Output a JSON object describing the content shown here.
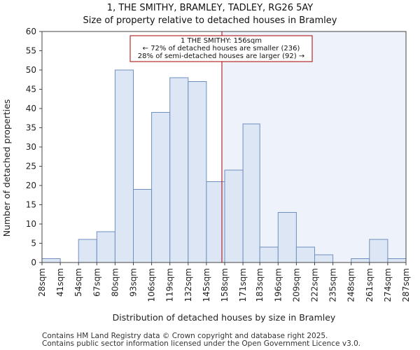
{
  "title_line1": "1, THE SMITHY, BRAMLEY, TADLEY, RG26 5AY",
  "title_line2": "Size of property relative to detached houses in Bramley",
  "footer_line1": "Contains HM Land Registry data © Crown copyright and database right 2025.",
  "footer_line2": "Contains public sector information licensed under the Open Government Licence v3.0.",
  "colors": {
    "bar_fill": "#dce6f5",
    "bar_stroke": "#6f8fbf",
    "highlight_region": "#eef2fb",
    "marker_line": "#aa0000",
    "annotation_border": "#aa0000"
  },
  "chart_data": {
    "type": "bar",
    "title": "Size of property relative to detached houses in Bramley",
    "xlabel": "Distribution of detached houses by size in Bramley",
    "ylabel": "Number of detached properties",
    "ylim": [
      0,
      60
    ],
    "yticks": [
      0,
      5,
      10,
      15,
      20,
      25,
      30,
      35,
      40,
      45,
      50,
      55,
      60
    ],
    "bin_edges": [
      28,
      41,
      54,
      67,
      80,
      93,
      106,
      119,
      132,
      145,
      158,
      171,
      183,
      196,
      209,
      222,
      235,
      248,
      261,
      274,
      287
    ],
    "tick_labels": [
      "28sqm",
      "41sqm",
      "54sqm",
      "67sqm",
      "80sqm",
      "93sqm",
      "106sqm",
      "119sqm",
      "132sqm",
      "145sqm",
      "158sqm",
      "171sqm",
      "183sqm",
      "196sqm",
      "209sqm",
      "222sqm",
      "235sqm",
      "248sqm",
      "261sqm",
      "274sqm",
      "287sqm"
    ],
    "values": [
      1,
      0,
      6,
      8,
      50,
      19,
      39,
      48,
      47,
      21,
      24,
      36,
      4,
      13,
      4,
      2,
      0,
      1,
      6,
      1
    ],
    "grid": false,
    "marker": {
      "value": 156,
      "unit": "sqm",
      "annotation": [
        "1 THE SMITHY: 156sqm",
        "← 72% of detached houses are smaller (236)",
        "28% of semi-detached houses are larger (92) →"
      ]
    }
  }
}
